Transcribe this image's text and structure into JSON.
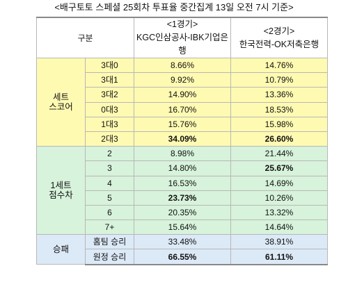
{
  "title": "<배구토토 스페셜 25회차 투표율 중간집계 13일 오전 7시 기준>",
  "header": {
    "category": "구분",
    "game1_number": "<1경기>",
    "game1_teams": "KGC인삼공사-IBK기업은행",
    "game2_number": "<2경기>",
    "game2_teams": "한국전력-OK저축은행"
  },
  "sections": [
    {
      "name_line1": "세트",
      "name_line2": "스코어",
      "rows": [
        {
          "label": "3대0",
          "game1": "8.66%",
          "game2": "14.76%"
        },
        {
          "label": "3대1",
          "game1": "9.92%",
          "game2": "10.79%"
        },
        {
          "label": "3대2",
          "game1": "14.90%",
          "game2": "13.36%"
        },
        {
          "label": "0대3",
          "game1": "16.70%",
          "game2": "18.53%"
        },
        {
          "label": "1대3",
          "game1": "15.76%",
          "game2": "15.98%"
        },
        {
          "label": "2대3",
          "game1": "34.09%",
          "game2": "26.60%"
        }
      ]
    },
    {
      "name_line1": "1세트",
      "name_line2": "점수차",
      "rows": [
        {
          "label": "2",
          "game1": "8.98%",
          "game2": "21.44%"
        },
        {
          "label": "3",
          "game1": "14.80%",
          "game2": "25.67%"
        },
        {
          "label": "4",
          "game1": "16.53%",
          "game2": "14.69%"
        },
        {
          "label": "5",
          "game1": "23.73%",
          "game2": "10.26%"
        },
        {
          "label": "6",
          "game1": "20.35%",
          "game2": "13.32%"
        },
        {
          "label": "7+",
          "game1": "15.64%",
          "game2": "14.64%"
        }
      ]
    },
    {
      "name_line1": "승패",
      "rows": [
        {
          "label": "홈팀 승리",
          "game1": "33.48%",
          "game2": "38.91%"
        },
        {
          "label": "원정 승리",
          "game1": "66.55%",
          "game2": "61.11%"
        }
      ]
    }
  ]
}
